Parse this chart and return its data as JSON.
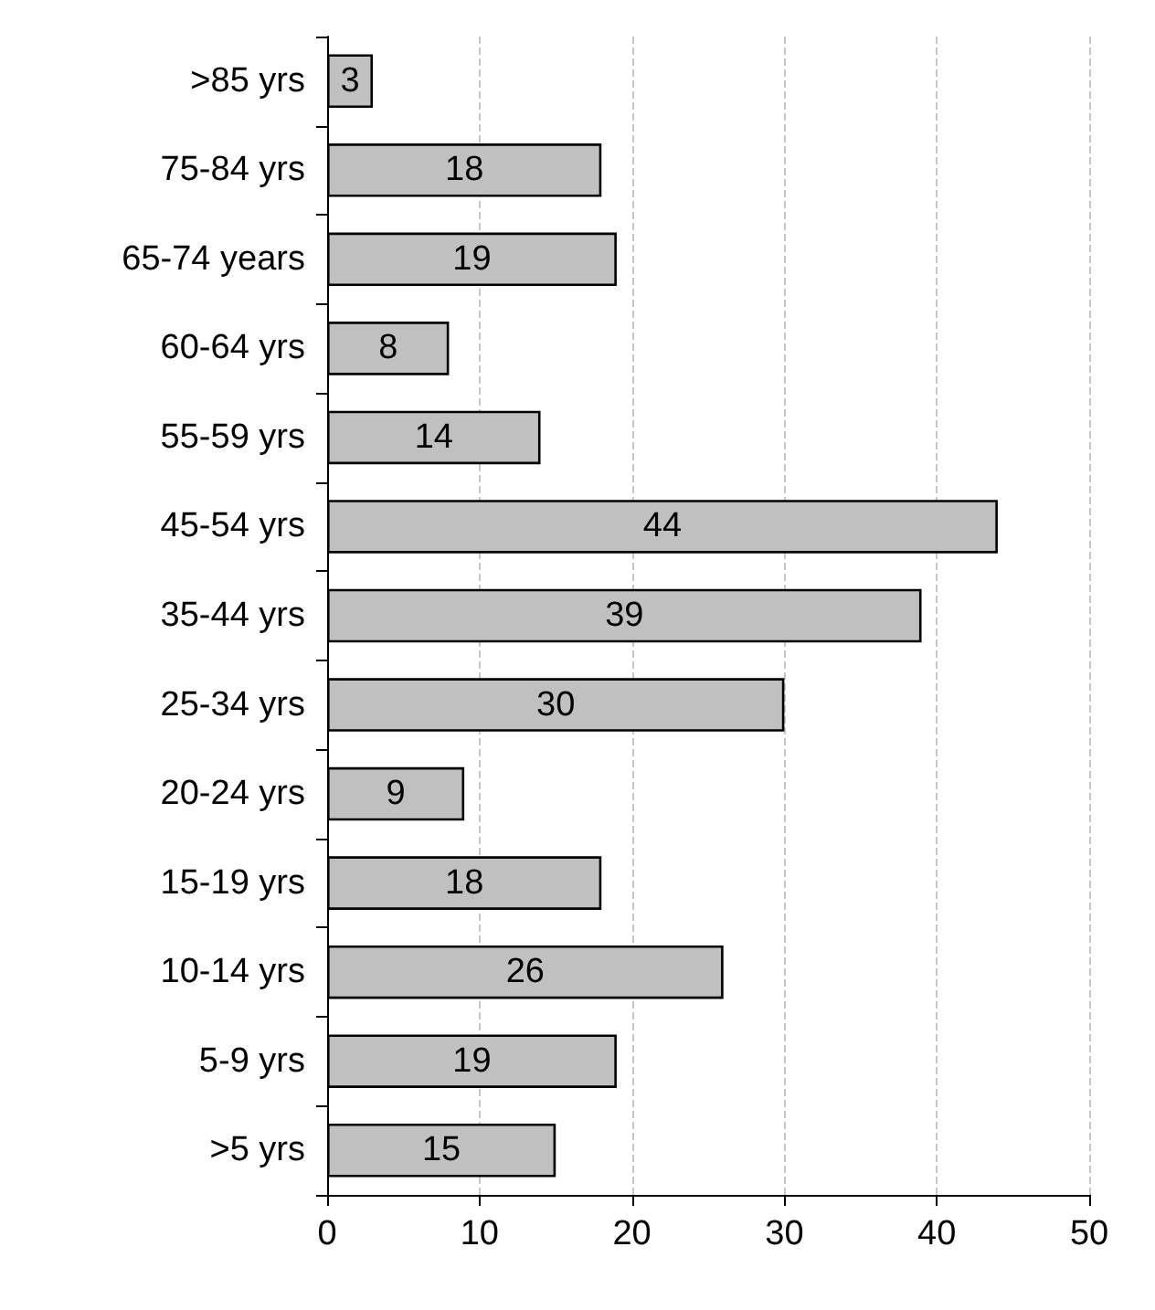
{
  "chart_data": {
    "type": "bar",
    "orientation": "horizontal",
    "categories": [
      ">85 yrs",
      "75-84 yrs",
      "65-74 years",
      "60-64 yrs",
      "55-59 yrs",
      "45-54 yrs",
      "35-44 yrs",
      "25-34 yrs",
      "20-24 yrs",
      "15-19 yrs",
      "10-14 yrs",
      "5-9 yrs",
      ">5 yrs"
    ],
    "values": [
      3,
      18,
      19,
      8,
      14,
      44,
      39,
      30,
      9,
      18,
      26,
      19,
      15
    ],
    "color": "#c0c0c0",
    "xlim": [
      0,
      50
    ],
    "xticks": [
      0,
      10,
      20,
      30,
      40,
      50
    ],
    "grid": "x",
    "data_labels": true
  }
}
